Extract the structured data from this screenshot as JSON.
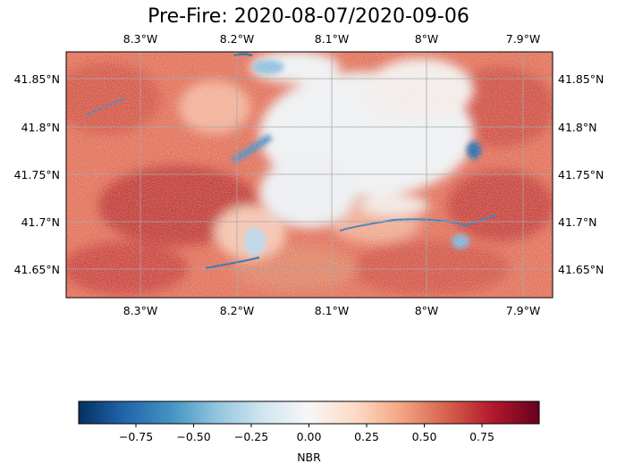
{
  "title": "Pre-Fire: 2020-08-07/2020-09-06",
  "map": {
    "lon_ticks": [
      "8.3°W",
      "8.2°W",
      "8.1°W",
      "8°W",
      "7.9°W"
    ],
    "lat_ticks": [
      "41.85°N",
      "41.8°N",
      "41.75°N",
      "41.7°N",
      "41.65°N"
    ],
    "gridlines": true,
    "colormap": "RdBu_r"
  },
  "colorbar": {
    "label": "NBR",
    "ticks": [
      "−0.75",
      "−0.50",
      "−0.25",
      "0.00",
      "0.25",
      "0.50",
      "0.75"
    ],
    "range": [
      -1,
      1
    ],
    "colors": [
      "#053061",
      "#2166ac",
      "#4393c3",
      "#92c5de",
      "#d1e5f0",
      "#f7f7f7",
      "#fddbc7",
      "#f4a582",
      "#d6604d",
      "#b2182b",
      "#67001f"
    ]
  }
}
